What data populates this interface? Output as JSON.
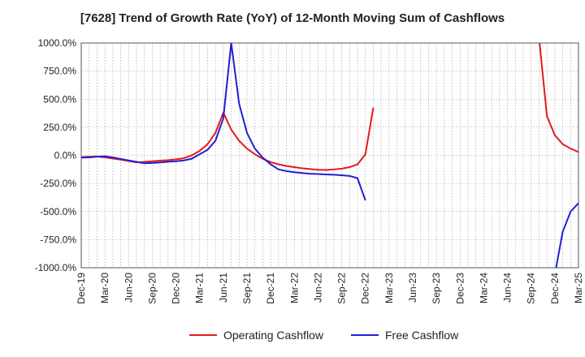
{
  "chart_data": {
    "type": "line",
    "title": "[7628]  Trend of Growth Rate (YoY) of 12-Month Moving Sum of Cashflows",
    "xlabel": "",
    "ylabel": "",
    "ylim": [
      -1000,
      1000
    ],
    "y_ticks": [
      "1000.0%",
      "750.0%",
      "500.0%",
      "250.0%",
      "0.0%",
      "-250.0%",
      "-500.0%",
      "-750.0%",
      "-1000.0%"
    ],
    "y_tick_values": [
      1000,
      750,
      500,
      250,
      0,
      -250,
      -500,
      -750,
      -1000
    ],
    "x_ticks": [
      "Dec-19",
      "Mar-20",
      "Jun-20",
      "Sep-20",
      "Dec-20",
      "Mar-21",
      "Jun-21",
      "Sep-21",
      "Dec-21",
      "Mar-22",
      "Jun-22",
      "Sep-22",
      "Dec-22",
      "Mar-23",
      "Jun-23",
      "Sep-23",
      "Dec-23",
      "Mar-24",
      "Jun-24",
      "Sep-24",
      "Dec-24",
      "Mar-25"
    ],
    "grid": true,
    "legend_position": "bottom",
    "x_start": "2019-12",
    "series": [
      {
        "name": "Operating Cashflow",
        "color": "#e31a1c",
        "values": [
          -15,
          -12,
          -10,
          -18,
          -28,
          -38,
          -50,
          -62,
          -58,
          -52,
          -47,
          -42,
          -35,
          -25,
          0,
          40,
          100,
          200,
          380,
          230,
          130,
          60,
          10,
          -30,
          -60,
          -80,
          -95,
          -105,
          -115,
          -122,
          -128,
          -130,
          -125,
          -118,
          -105,
          -80,
          10,
          425,
          null,
          null,
          null,
          null,
          null,
          null,
          null,
          null,
          null,
          null,
          null,
          null,
          null,
          null,
          null,
          null,
          null,
          null,
          null,
          null,
          1050,
          350,
          180,
          100,
          60,
          30,
          12,
          0
        ]
      },
      {
        "name": "Free Cashflow",
        "color": "#1f1fd6",
        "values": [
          -20,
          -18,
          -12,
          -8,
          -18,
          -32,
          -45,
          -58,
          -70,
          -68,
          -63,
          -57,
          -52,
          -45,
          -30,
          10,
          50,
          130,
          330,
          1000,
          460,
          200,
          60,
          -20,
          -80,
          -125,
          -140,
          -150,
          -157,
          -163,
          -166,
          -170,
          -172,
          -177,
          -183,
          -203,
          -400,
          null,
          null,
          null,
          null,
          null,
          null,
          null,
          null,
          null,
          null,
          null,
          null,
          null,
          null,
          null,
          null,
          null,
          null,
          null,
          null,
          null,
          null,
          null,
          -1060,
          -680,
          -500,
          -425,
          -375,
          -345
        ]
      }
    ]
  }
}
